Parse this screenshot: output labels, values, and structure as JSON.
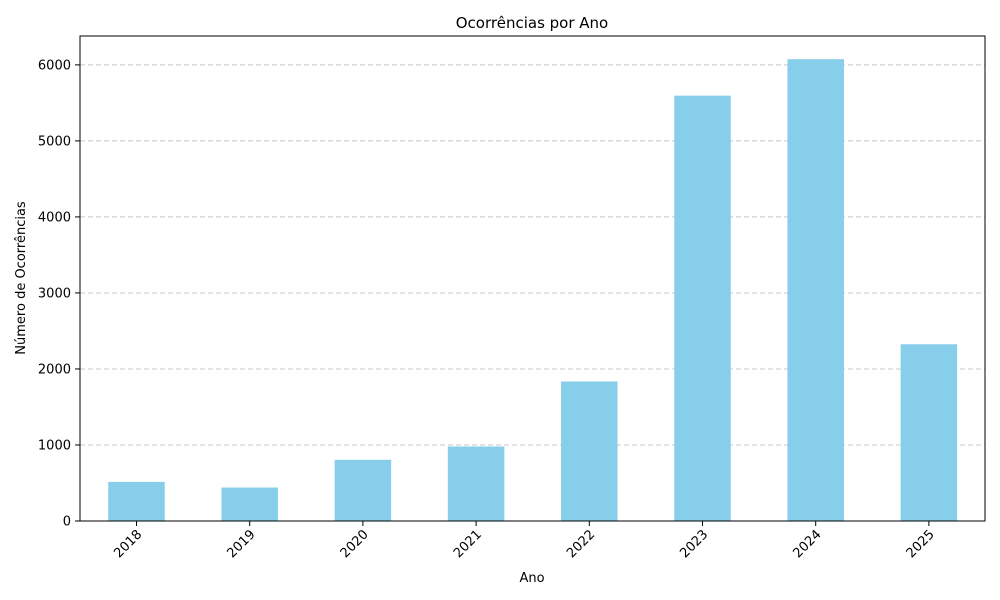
{
  "chart_data": {
    "type": "bar",
    "title": "Ocorrências por Ano",
    "xlabel": "Ano",
    "ylabel": "Número de Ocorrências",
    "categories": [
      "2018",
      "2019",
      "2020",
      "2021",
      "2022",
      "2023",
      "2024",
      "2025"
    ],
    "values": [
      515,
      440,
      805,
      980,
      1835,
      5595,
      6075,
      2325
    ],
    "ylim": [
      0,
      6380
    ],
    "yticks": [
      0,
      1000,
      2000,
      3000,
      4000,
      5000,
      6000
    ],
    "grid": "y-dashed",
    "bar_color": "#87ceeb",
    "xtick_rotation": -45
  }
}
